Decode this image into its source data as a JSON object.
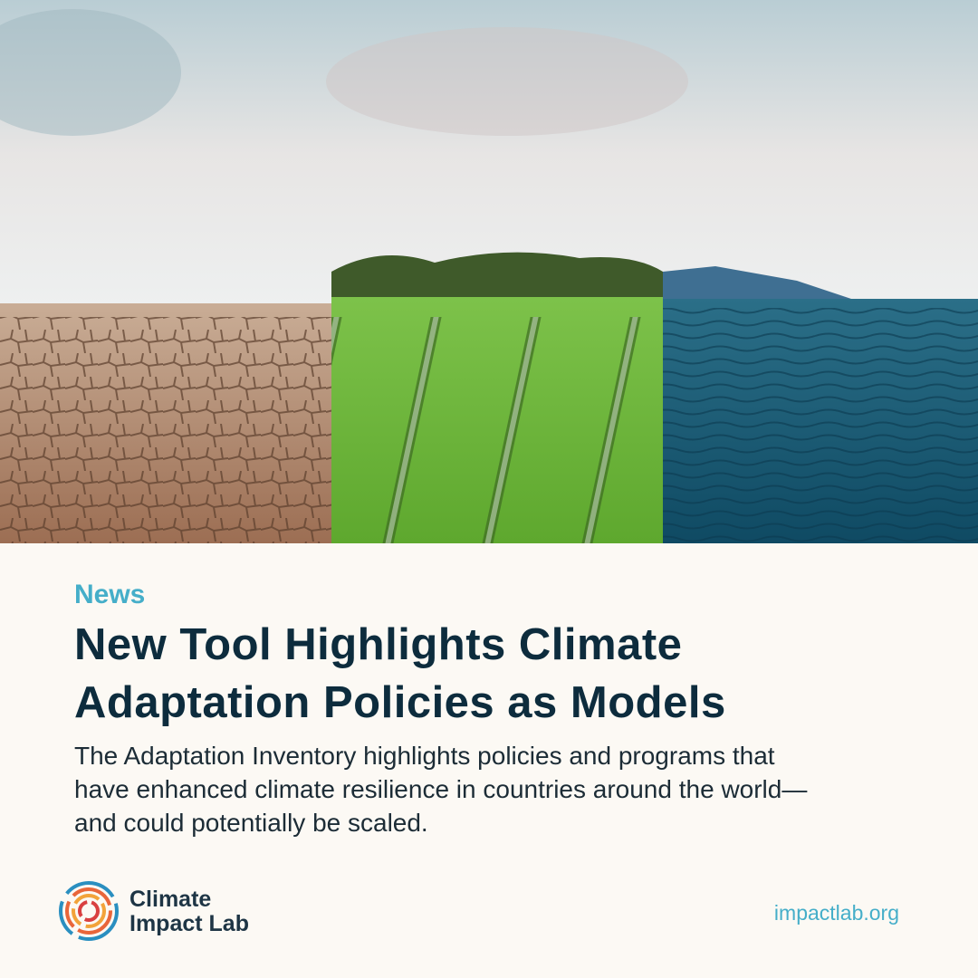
{
  "header": {
    "kicker": "News",
    "title_lines": [
      "New Tool Highlights Climate",
      "Adaptation Policies as Models"
    ]
  },
  "body_lines": [
    "The Adaptation Inventory highlights policies and programs that",
    "have enhanced climate resilience in countries around the world—",
    "and could potentially be scaled."
  ],
  "footer": {
    "logo_lines": [
      "Climate",
      "Impact Lab"
    ],
    "url": "impactlab.org"
  }
}
